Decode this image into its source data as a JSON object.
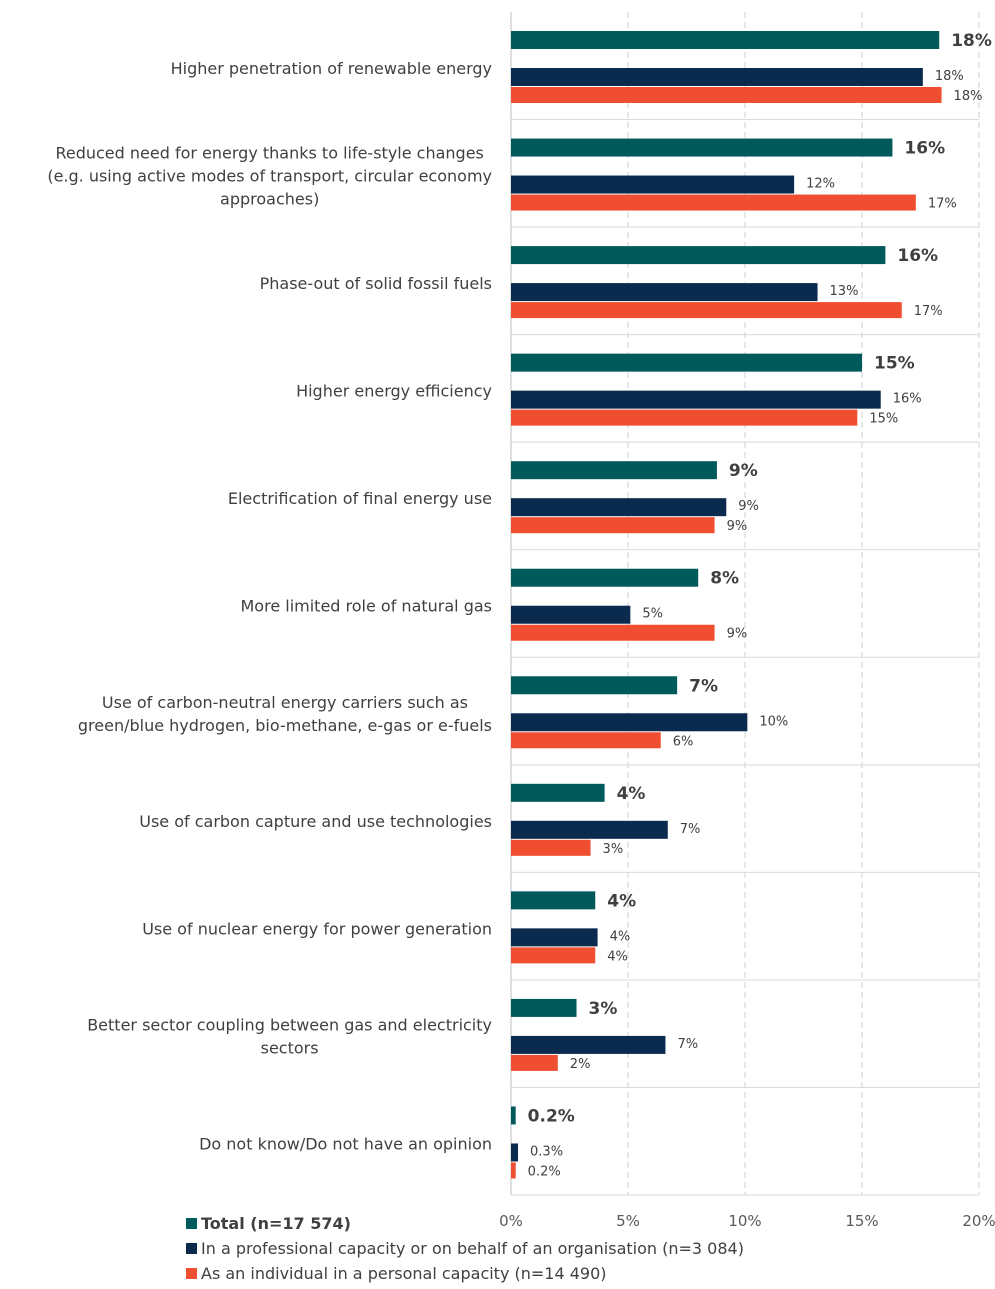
{
  "chart_data": {
    "type": "bar",
    "orientation": "horizontal",
    "categories": [
      "Higher penetration of renewable energy",
      "Reduced need for energy thanks to life-style changes|(e.g. using active modes of transport, circular economy|approaches)",
      "Phase-out of solid fossil fuels",
      "Higher energy efficiency",
      "Electrification of final energy use",
      "More limited role of natural gas",
      "Use of carbon-neutral energy carriers such as|green/blue hydrogen, bio-methane, e-gas or e-fuels",
      "Use of carbon capture and use technologies",
      "Use of nuclear energy for power generation",
      "Better sector coupling between gas and electricity|sectors",
      "Do not know/Do not have an opinion"
    ],
    "series": [
      {
        "name": "Total (n=17 574)",
        "color": "#005A5B",
        "values": [
          18.3,
          16.3,
          16.0,
          15.0,
          8.8,
          8.0,
          7.1,
          4.0,
          3.6,
          2.8,
          0.2
        ],
        "labels": [
          "18%",
          "16%",
          "16%",
          "15%",
          "9%",
          "8%",
          "7%",
          "4%",
          "4%",
          "3%",
          "0.2%"
        ]
      },
      {
        "name": "In a professional capacity or on behalf of an organisation (n=3 084)",
        "color": "#0A2A4E",
        "values": [
          17.6,
          12.1,
          13.1,
          15.8,
          9.2,
          5.1,
          10.1,
          6.7,
          3.7,
          6.6,
          0.3
        ],
        "labels": [
          "18%",
          "12%",
          "13%",
          "16%",
          "9%",
          "5%",
          "10%",
          "7%",
          "4%",
          "7%",
          "0.3%"
        ]
      },
      {
        "name": "As an individual in a personal capacity (n=14 490)",
        "color": "#F04E30",
        "values": [
          18.4,
          17.3,
          16.7,
          14.8,
          8.7,
          8.7,
          6.4,
          3.4,
          3.6,
          2.0,
          0.2
        ],
        "labels": [
          "18%",
          "17%",
          "17%",
          "15%",
          "9%",
          "9%",
          "6%",
          "3%",
          "4%",
          "2%",
          "0.2%"
        ]
      }
    ],
    "xlim": [
      0,
      20
    ],
    "x_ticks": [
      "0%",
      "5%",
      "10%",
      "15%",
      "20%"
    ],
    "grid": true,
    "legend_position": "bottom-left"
  }
}
